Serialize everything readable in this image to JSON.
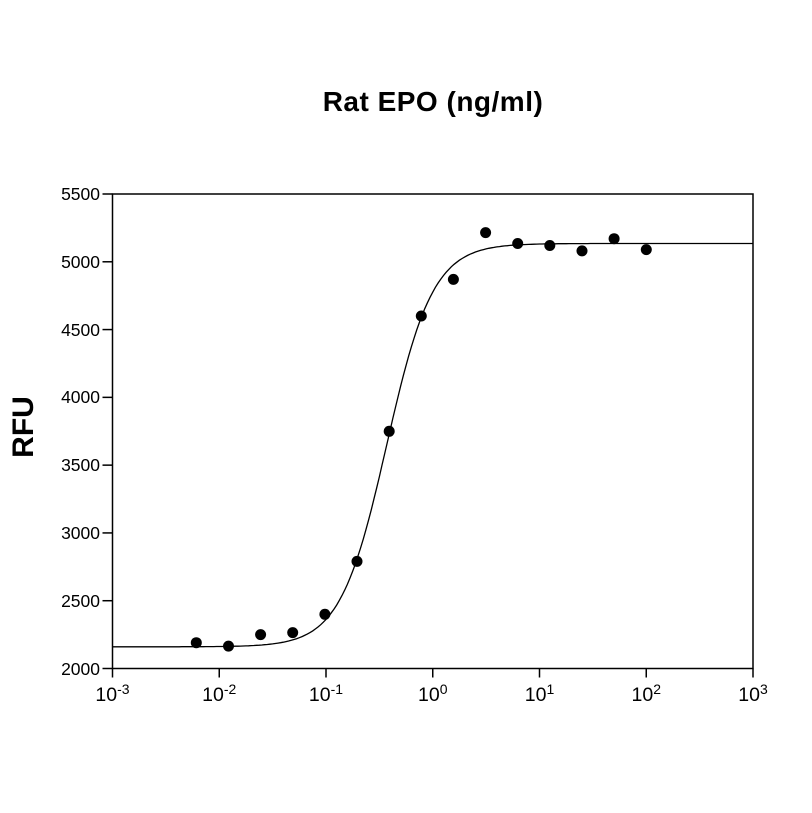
{
  "chart_data": {
    "type": "scatter",
    "title": "Rat EPO (ng/ml)",
    "xlabel": "Rat EPO (ng/ml)",
    "ylabel": "RFU",
    "x_scale": "log10",
    "x_tick_base": "10",
    "x_tick_exponents": [
      -3,
      -2,
      -1,
      0,
      1,
      2,
      3
    ],
    "xlim_exp": [
      -3,
      3
    ],
    "y_ticks": [
      2000,
      2500,
      3000,
      3500,
      4000,
      4500,
      5000,
      5500
    ],
    "ylim": [
      2000,
      5500
    ],
    "grid": false,
    "legend": null,
    "frame": "box",
    "marker": {
      "shape": "circle",
      "color": "#000000",
      "radius_px": 5.5
    },
    "points": {
      "x_ng_ml": [
        0.0061,
        0.0122,
        0.0244,
        0.0488,
        0.0977,
        0.195,
        0.391,
        0.781,
        1.56,
        3.13,
        6.25,
        12.5,
        25,
        50,
        100
      ],
      "y_rfu": [
        2190,
        2165,
        2250,
        2265,
        2400,
        2790,
        3750,
        4600,
        4870,
        5215,
        5135,
        5120,
        5080,
        5170,
        5090
      ]
    },
    "fit_curve": {
      "model": "4PL",
      "bottom": 2160,
      "top": 5135,
      "ec50_ng_ml": 0.37,
      "hill": 2.0,
      "color": "#000000"
    }
  }
}
